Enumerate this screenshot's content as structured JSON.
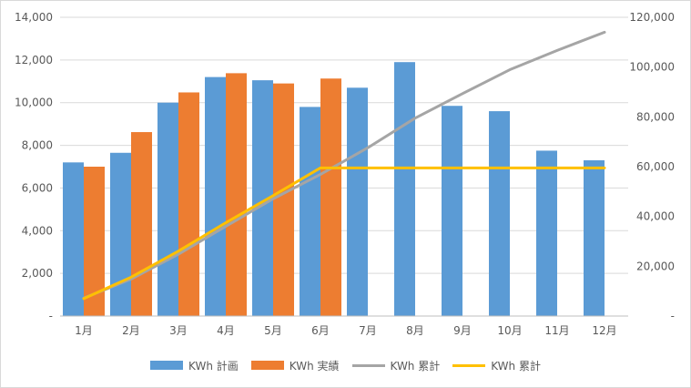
{
  "chart_data": {
    "type": "bar",
    "categories": [
      "1月",
      "2月",
      "3月",
      "4月",
      "5月",
      "6月",
      "7月",
      "8月",
      "9月",
      "10月",
      "11月",
      "12月"
    ],
    "series": [
      {
        "name": "KWh 計画",
        "kind": "bar",
        "axis": "left",
        "color": "#5b9bd5",
        "values": [
          7200,
          7650,
          10000,
          11200,
          11050,
          9800,
          10700,
          11900,
          9850,
          9600,
          7750,
          7300
        ]
      },
      {
        "name": "KWh 実績",
        "kind": "bar",
        "axis": "left",
        "color": "#ed7d31",
        "values": [
          7000,
          8620,
          10480,
          11380,
          10900,
          11130,
          null,
          null,
          null,
          null,
          null,
          null
        ]
      },
      {
        "name": "KWh 累計",
        "kind": "line",
        "axis": "right",
        "color": "#a5a5a5",
        "values": [
          7200,
          14850,
          24850,
          36050,
          47100,
          56900,
          67600,
          79500,
          89350,
          98950,
          106700,
          114000
        ]
      },
      {
        "name": "KWh 累計",
        "kind": "line",
        "axis": "right",
        "color": "#ffc000",
        "values": [
          7000,
          15620,
          26100,
          37480,
          48380,
          59510,
          59510,
          59510,
          59510,
          59510,
          59510,
          59510
        ]
      }
    ],
    "yLeft": {
      "min": 0,
      "max": 14000,
      "step": 2000,
      "tick_labels": [
        "-",
        "2,000",
        "4,000",
        "6,000",
        "8,000",
        "10,000",
        "12,000",
        "14,000"
      ]
    },
    "yRight": {
      "min": 0,
      "max": 120000,
      "step": 20000,
      "tick_labels": [
        "-",
        "20,000",
        "40,000",
        "60,000",
        "80,000",
        "100,000",
        "120,000"
      ]
    },
    "grid": true,
    "legend_position": "bottom"
  }
}
